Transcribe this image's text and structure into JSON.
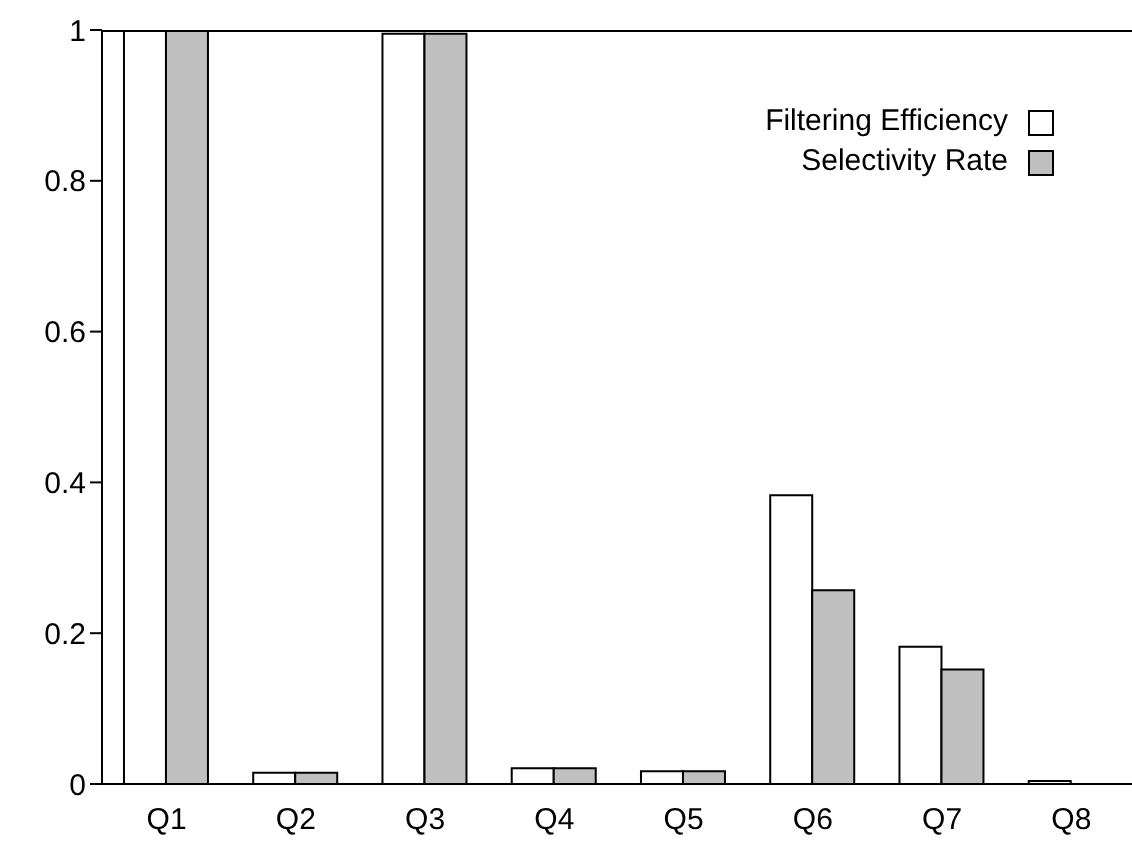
{
  "chart_data": {
    "type": "bar",
    "categories": [
      "Q1",
      "Q2",
      "Q3",
      "Q4",
      "Q5",
      "Q6",
      "Q7",
      "Q8"
    ],
    "series": [
      {
        "name": "Filtering Efficiency",
        "color": "#ffffff",
        "values": [
          1,
          0.015,
          0.995,
          0.021,
          0.017,
          0.383,
          0.182,
          0.004
        ]
      },
      {
        "name": "Selectivity Rate",
        "color": "#c0c0c0",
        "values": [
          1,
          0.015,
          0.995,
          0.021,
          0.017,
          0.257,
          0.152,
          null
        ]
      }
    ],
    "ylim": [
      0,
      1
    ],
    "yticks": [
      0,
      0.2,
      0.4,
      0.6,
      0.8,
      1
    ],
    "grid": false,
    "legend": "top right"
  }
}
